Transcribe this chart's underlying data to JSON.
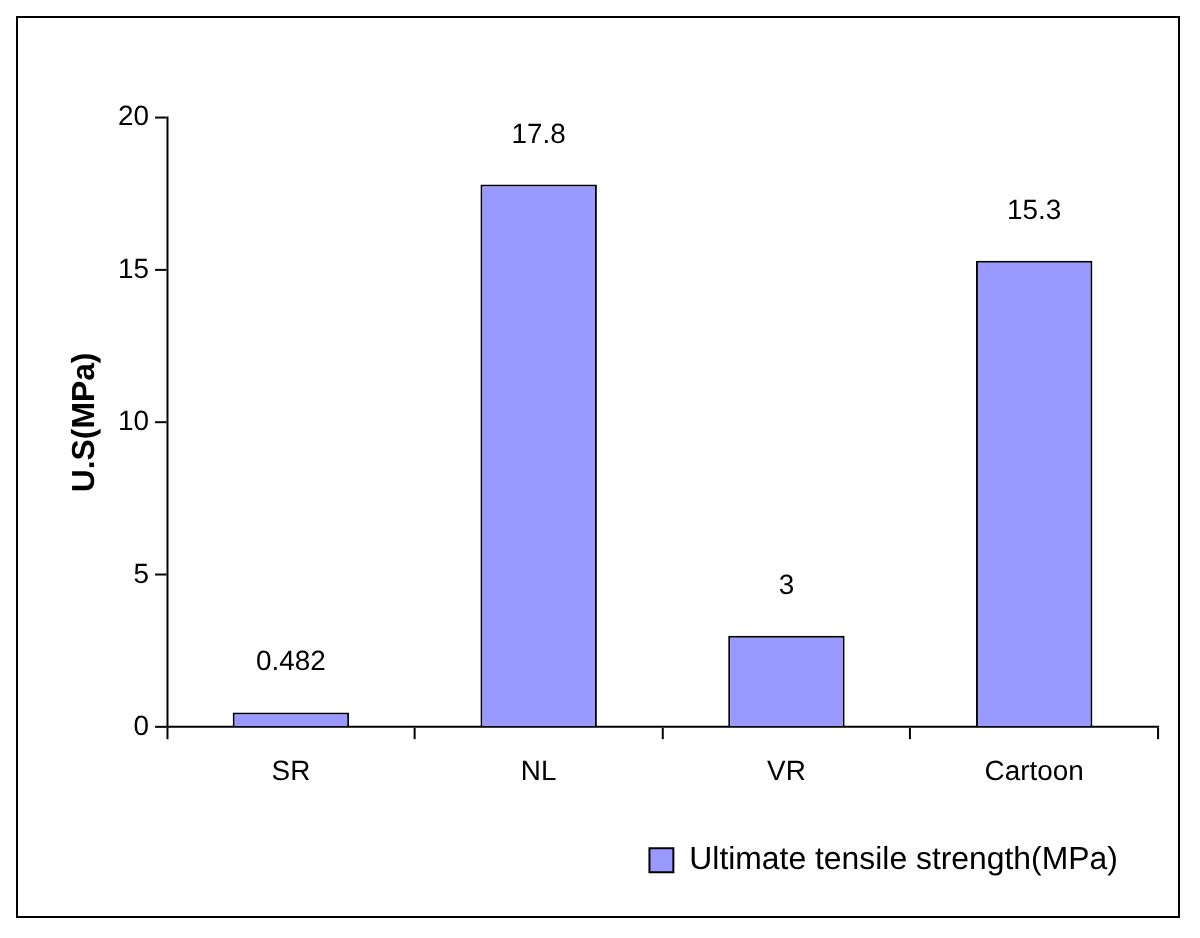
{
  "chart_data": {
    "type": "bar",
    "ylabel": "U.S(MPa)",
    "categories": [
      "SR",
      "NL",
      "VR",
      "Cartoon"
    ],
    "series": [
      {
        "name": "Ultimate tensile strength(MPa)",
        "color": "#9999ff",
        "values": [
          0.482,
          17.8,
          3,
          15.3
        ]
      }
    ],
    "ylim": [
      0,
      20
    ],
    "yticks": [
      0,
      5,
      10,
      15,
      20
    ],
    "data_labels": true,
    "legend": "bottom right",
    "grid": false
  }
}
